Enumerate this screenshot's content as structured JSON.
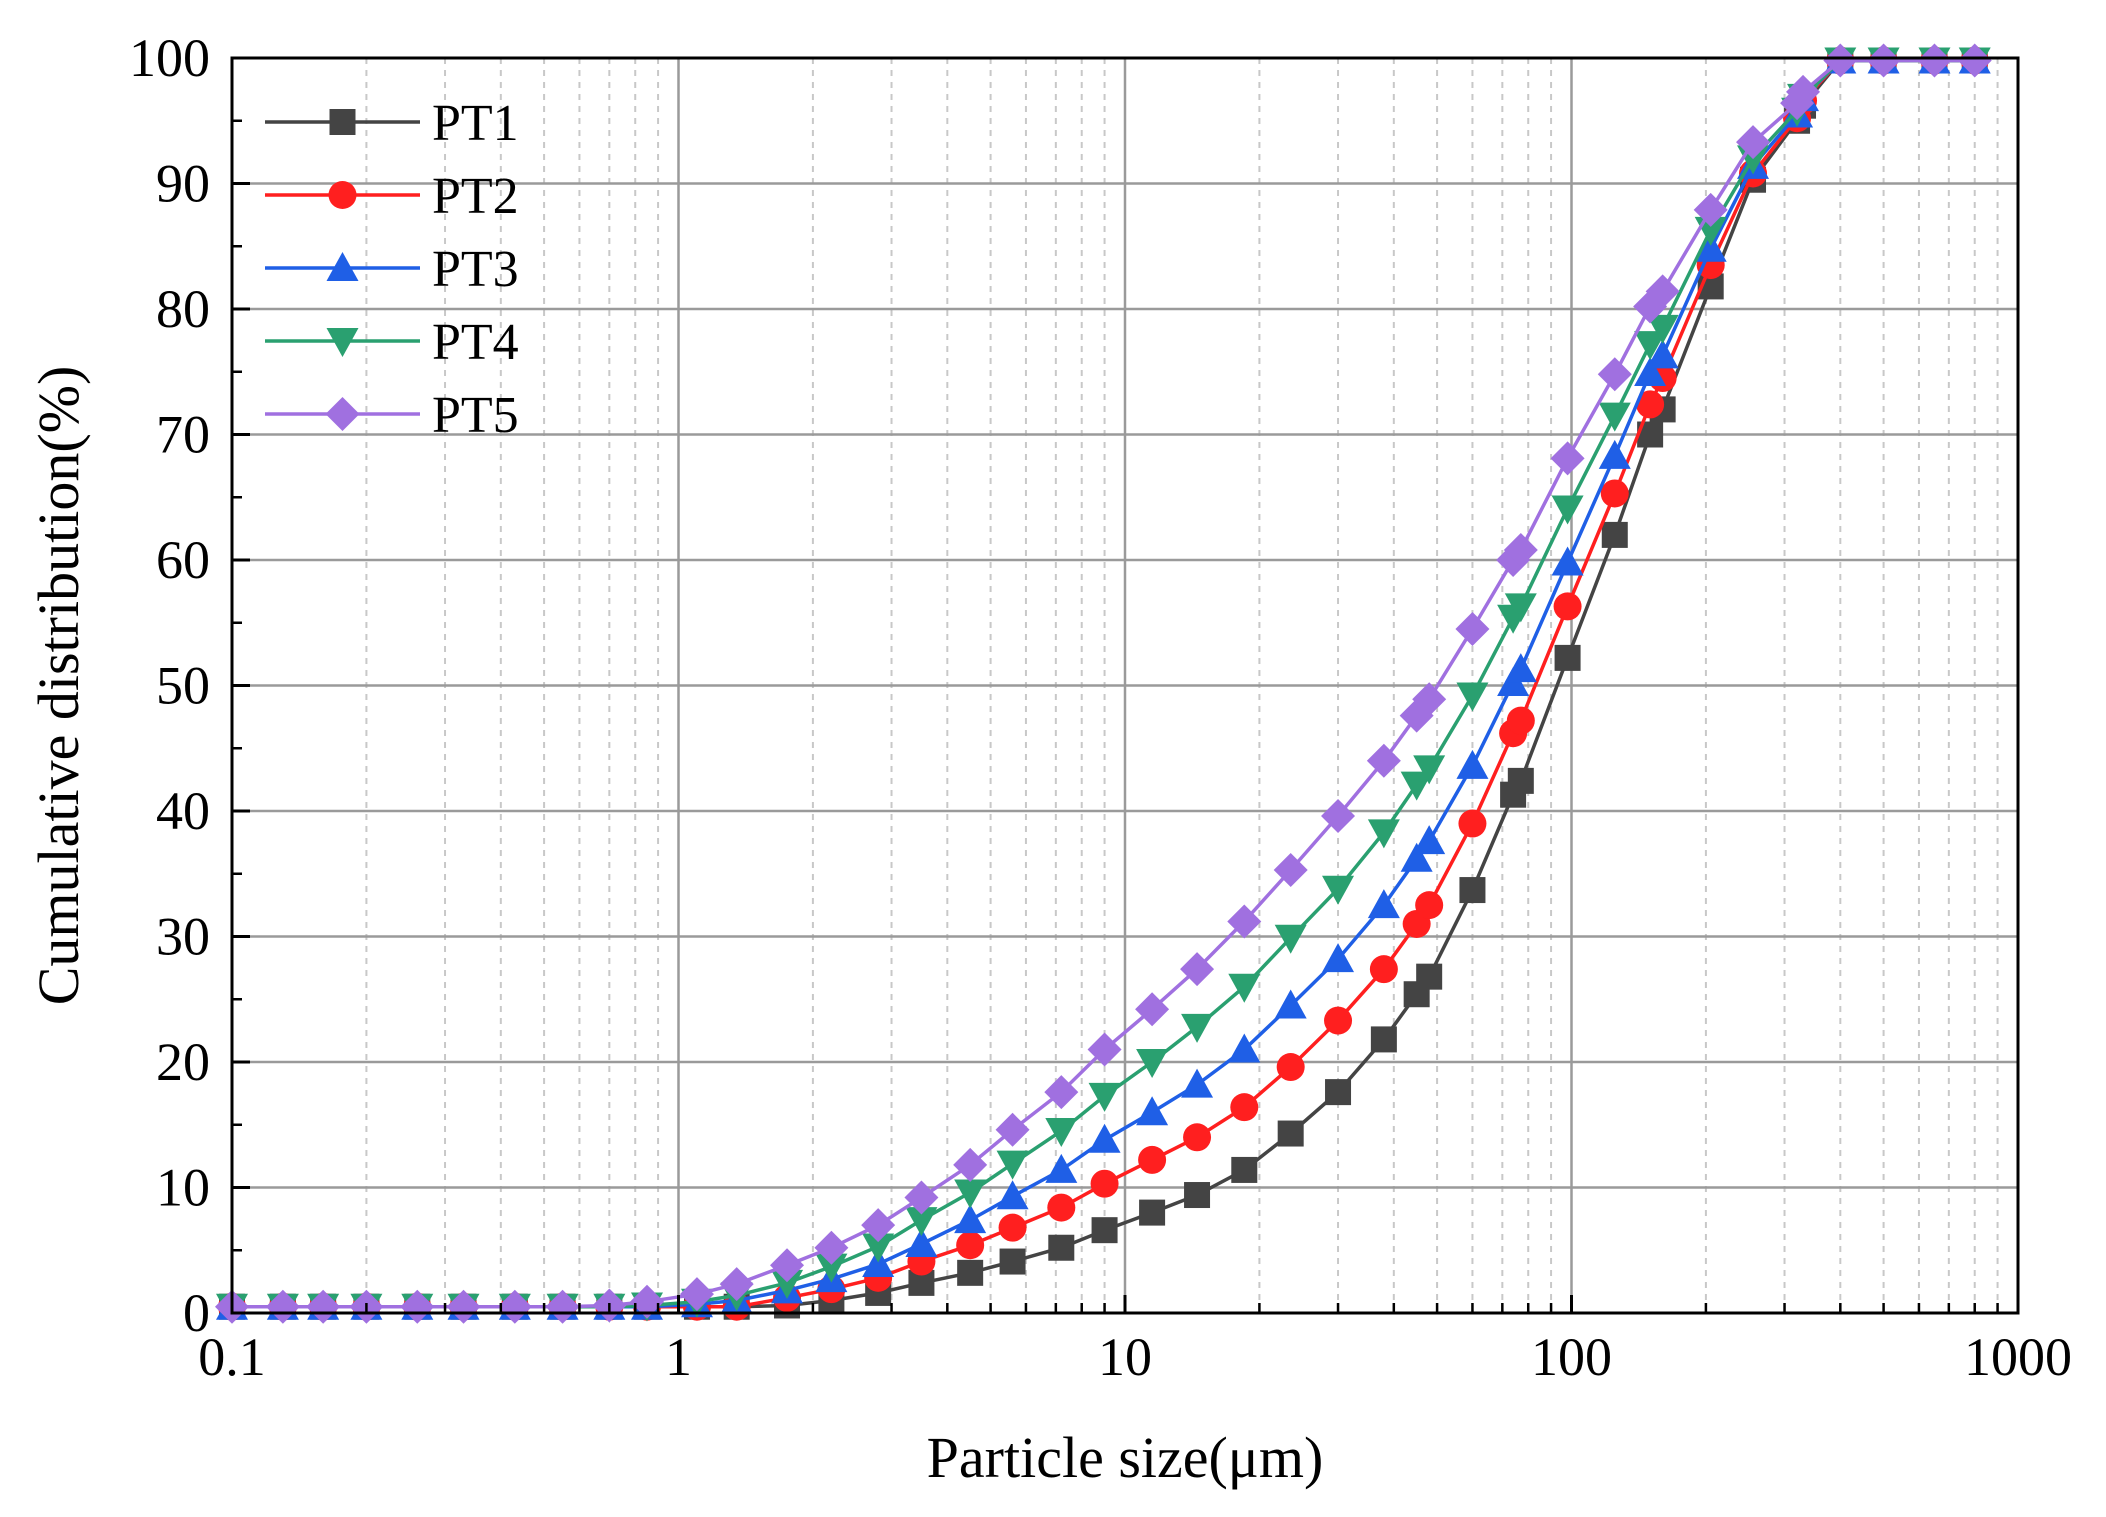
{
  "chart_data": {
    "type": "line",
    "title": "",
    "xlabel": "Particle size(μm)",
    "ylabel": "Cumulative distribution(%)",
    "xscale": "log",
    "xlim": [
      0.1,
      1000
    ],
    "ylim": [
      0,
      100
    ],
    "x_ticks": [
      {
        "value": 0.1,
        "label": "0.1"
      },
      {
        "value": 1,
        "label": "1"
      },
      {
        "value": 10,
        "label": "10"
      },
      {
        "value": 100,
        "label": "100"
      },
      {
        "value": 1000,
        "label": "1000"
      }
    ],
    "y_ticks": [
      {
        "value": 0,
        "label": "0"
      },
      {
        "value": 10,
        "label": "10"
      },
      {
        "value": 20,
        "label": "20"
      },
      {
        "value": 30,
        "label": "30"
      },
      {
        "value": 40,
        "label": "40"
      },
      {
        "value": 50,
        "label": "50"
      },
      {
        "value": 60,
        "label": "60"
      },
      {
        "value": 70,
        "label": "70"
      },
      {
        "value": 80,
        "label": "80"
      },
      {
        "value": 90,
        "label": "90"
      },
      {
        "value": 100,
        "label": "100"
      }
    ],
    "grid": true,
    "legend_position": "top-left",
    "x": [
      0.1,
      0.13,
      0.16,
      0.2,
      0.26,
      0.33,
      0.43,
      0.55,
      0.7,
      0.85,
      1.1,
      1.35,
      1.75,
      2.2,
      2.8,
      3.5,
      4.5,
      5.6,
      7.2,
      9.0,
      11.5,
      14.5,
      18.5,
      23.5,
      30,
      38,
      45,
      48,
      60,
      74,
      77,
      98,
      125,
      150,
      160,
      205,
      255,
      320,
      330,
      400,
      500,
      650,
      800
    ],
    "series": [
      {
        "name": "PT1",
        "color": "#444444",
        "marker": "square",
        "values": [
          0.5,
          0.5,
          0.5,
          0.5,
          0.5,
          0.5,
          0.5,
          0.5,
          0.5,
          0.5,
          0.5,
          0.5,
          0.6,
          1.0,
          1.6,
          2.4,
          3.2,
          4.1,
          5.2,
          6.6,
          8.0,
          9.4,
          11.4,
          14.3,
          17.6,
          21.8,
          25.4,
          26.8,
          33.7,
          41.3,
          42.4,
          52.2,
          62.0,
          70.0,
          72.0,
          81.8,
          90.3,
          95.0,
          96.2,
          99.8,
          99.8,
          99.8,
          99.8
        ]
      },
      {
        "name": "PT2",
        "color": "#ff1f1f",
        "marker": "circle",
        "values": [
          0.5,
          0.5,
          0.5,
          0.5,
          0.5,
          0.5,
          0.5,
          0.5,
          0.5,
          0.5,
          0.5,
          0.5,
          1.2,
          1.9,
          2.8,
          4.1,
          5.4,
          6.8,
          8.4,
          10.3,
          12.2,
          14.0,
          16.4,
          19.6,
          23.3,
          27.4,
          31.0,
          32.5,
          39.0,
          46.2,
          47.2,
          56.3,
          65.3,
          72.4,
          74.5,
          83.5,
          90.8,
          95.2,
          96.6,
          99.8,
          99.8,
          99.8,
          99.8
        ]
      },
      {
        "name": "PT3",
        "color": "#1f5fe6",
        "marker": "triangle-up",
        "values": [
          0.5,
          0.5,
          0.5,
          0.5,
          0.5,
          0.5,
          0.5,
          0.5,
          0.5,
          0.5,
          0.7,
          1.0,
          1.8,
          2.7,
          3.9,
          5.5,
          7.4,
          9.3,
          11.4,
          13.8,
          16.0,
          18.2,
          21.0,
          24.5,
          28.2,
          32.5,
          36.2,
          37.6,
          43.6,
          50.2,
          51.3,
          59.8,
          68.3,
          74.9,
          76.3,
          84.8,
          91.4,
          95.5,
          96.8,
          99.8,
          99.8,
          99.8,
          99.8
        ]
      },
      {
        "name": "PT4",
        "color": "#2aa070",
        "marker": "triangle-down",
        "values": [
          0.5,
          0.5,
          0.5,
          0.5,
          0.5,
          0.5,
          0.5,
          0.5,
          0.5,
          0.6,
          0.9,
          1.4,
          2.4,
          3.7,
          5.3,
          7.4,
          9.6,
          11.9,
          14.5,
          17.3,
          20.0,
          22.8,
          26.0,
          29.9,
          33.8,
          38.3,
          42.1,
          43.4,
          49.2,
          55.4,
          56.3,
          64.1,
          71.5,
          77.2,
          78.5,
          86.3,
          92.0,
          95.8,
          96.9,
          99.8,
          99.8,
          99.8,
          99.8
        ]
      },
      {
        "name": "PT5",
        "color": "#a070e0",
        "marker": "diamond",
        "values": [
          0.5,
          0.5,
          0.5,
          0.5,
          0.5,
          0.5,
          0.5,
          0.5,
          0.6,
          0.9,
          1.5,
          2.3,
          3.8,
          5.2,
          7.0,
          9.2,
          11.8,
          14.6,
          17.6,
          21.0,
          24.2,
          27.4,
          31.2,
          35.3,
          39.6,
          44.0,
          47.6,
          48.9,
          54.5,
          60.0,
          60.8,
          68.1,
          74.8,
          80.2,
          81.4,
          87.9,
          93.3,
          96.4,
          97.3,
          99.8,
          99.8,
          99.8,
          99.8
        ]
      }
    ]
  }
}
